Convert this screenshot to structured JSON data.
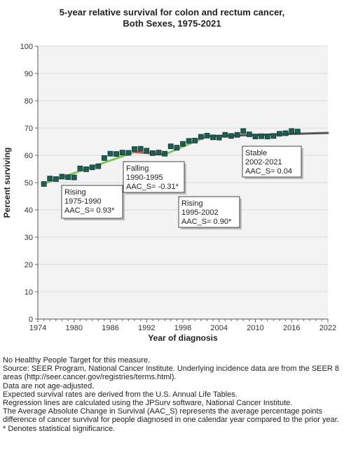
{
  "chart_data": {
    "type": "scatter",
    "title_line1": "5-year relative survival for colon and rectum cancer,",
    "title_line2": "Both Sexes,  1975-2021",
    "xlabel": "Year of diagnosis",
    "ylabel": "Percent surviving",
    "xlim": [
      1974,
      2022
    ],
    "ylim": [
      0,
      100
    ],
    "xticks": [
      1974,
      1980,
      1986,
      1992,
      1998,
      2004,
      2010,
      2016,
      2022
    ],
    "yticks": [
      0,
      10,
      20,
      30,
      40,
      50,
      60,
      70,
      80,
      90,
      100
    ],
    "grid": "horizontal",
    "points": [
      {
        "x": 1975,
        "y": 49.5
      },
      {
        "x": 1976,
        "y": 51.5
      },
      {
        "x": 1977,
        "y": 51.3
      },
      {
        "x": 1978,
        "y": 52.2
      },
      {
        "x": 1979,
        "y": 52.0
      },
      {
        "x": 1980,
        "y": 51.9
      },
      {
        "x": 1981,
        "y": 55.2
      },
      {
        "x": 1982,
        "y": 54.9
      },
      {
        "x": 1983,
        "y": 55.6
      },
      {
        "x": 1984,
        "y": 56.0
      },
      {
        "x": 1985,
        "y": 59.0
      },
      {
        "x": 1986,
        "y": 60.6
      },
      {
        "x": 1987,
        "y": 60.5
      },
      {
        "x": 1988,
        "y": 61.0
      },
      {
        "x": 1989,
        "y": 60.9
      },
      {
        "x": 1990,
        "y": 62.3
      },
      {
        "x": 1991,
        "y": 62.4
      },
      {
        "x": 1992,
        "y": 61.7
      },
      {
        "x": 1993,
        "y": 60.8
      },
      {
        "x": 1994,
        "y": 61.0
      },
      {
        "x": 1995,
        "y": 60.6
      },
      {
        "x": 1996,
        "y": 63.3
      },
      {
        "x": 1997,
        "y": 62.8
      },
      {
        "x": 1998,
        "y": 64.2
      },
      {
        "x": 1999,
        "y": 65.3
      },
      {
        "x": 2000,
        "y": 65.4
      },
      {
        "x": 2001,
        "y": 66.8
      },
      {
        "x": 2002,
        "y": 67.2
      },
      {
        "x": 2003,
        "y": 66.6
      },
      {
        "x": 2004,
        "y": 66.5
      },
      {
        "x": 2005,
        "y": 67.5
      },
      {
        "x": 2006,
        "y": 67.1
      },
      {
        "x": 2007,
        "y": 67.5
      },
      {
        "x": 2008,
        "y": 68.9
      },
      {
        "x": 2009,
        "y": 67.7
      },
      {
        "x": 2010,
        "y": 66.9
      },
      {
        "x": 2011,
        "y": 67.0
      },
      {
        "x": 2012,
        "y": 66.9
      },
      {
        "x": 2013,
        "y": 67.1
      },
      {
        "x": 2014,
        "y": 67.9
      },
      {
        "x": 2015,
        "y": 68.1
      },
      {
        "x": 2016,
        "y": 68.9
      },
      {
        "x": 2017,
        "y": 68.7
      }
    ],
    "segments": [
      {
        "x0": 1975,
        "y0": 49.6,
        "x1": 1990,
        "y1": 61.2,
        "color": "#7fc55a"
      },
      {
        "x0": 1990,
        "y0": 61.2,
        "x1": 1995,
        "y1": 60.3,
        "color": "#d9534f"
      },
      {
        "x0": 1995,
        "y0": 60.3,
        "x1": 2002,
        "y1": 67.0,
        "color": "#7fc55a"
      },
      {
        "x0": 2002,
        "y0": 67.0,
        "x1": 2022,
        "y1": 68.2,
        "color": "#555555"
      }
    ],
    "annotations": [
      {
        "line1": "Rising",
        "line2": "1975-1990",
        "line3": "AAC_S=  0.93*"
      },
      {
        "line1": "Falling",
        "line2": "1990-1995",
        "line3": "AAC_S= -0.31*"
      },
      {
        "line1": "Rising",
        "line2": "1995-2002",
        "line3": "AAC_S=  0.90*"
      },
      {
        "line1": "Stable",
        "line2": "2002-2021",
        "line3": "AAC_S=  0.04"
      }
    ],
    "colors": {
      "marker": "#1f5c55",
      "marker_edge": "#123a35",
      "rising": "#7fc55a",
      "falling": "#d9534f",
      "stable": "#555555"
    }
  },
  "footnotes": [
    "No Healthy People Target for this measure.",
    "Source: SEER Program, National Cancer Institute. Underlying incidence data are from the SEER 8 areas (http://seer.cancer.gov/registries/terms.html).",
    "Data are not age-adjusted.",
    "Expected survival rates are derived from the U.S. Annual Life Tables.",
    "Regression lines are calculated using the JPSurv software, National Cancer Institute.",
    "The Average Absolute Change in Survival (AAC_S) represents the average percentage points difference of cancer survival for people diagnosed in one calendar year compared to the prior year.",
    "* Denotes statistical significance."
  ]
}
